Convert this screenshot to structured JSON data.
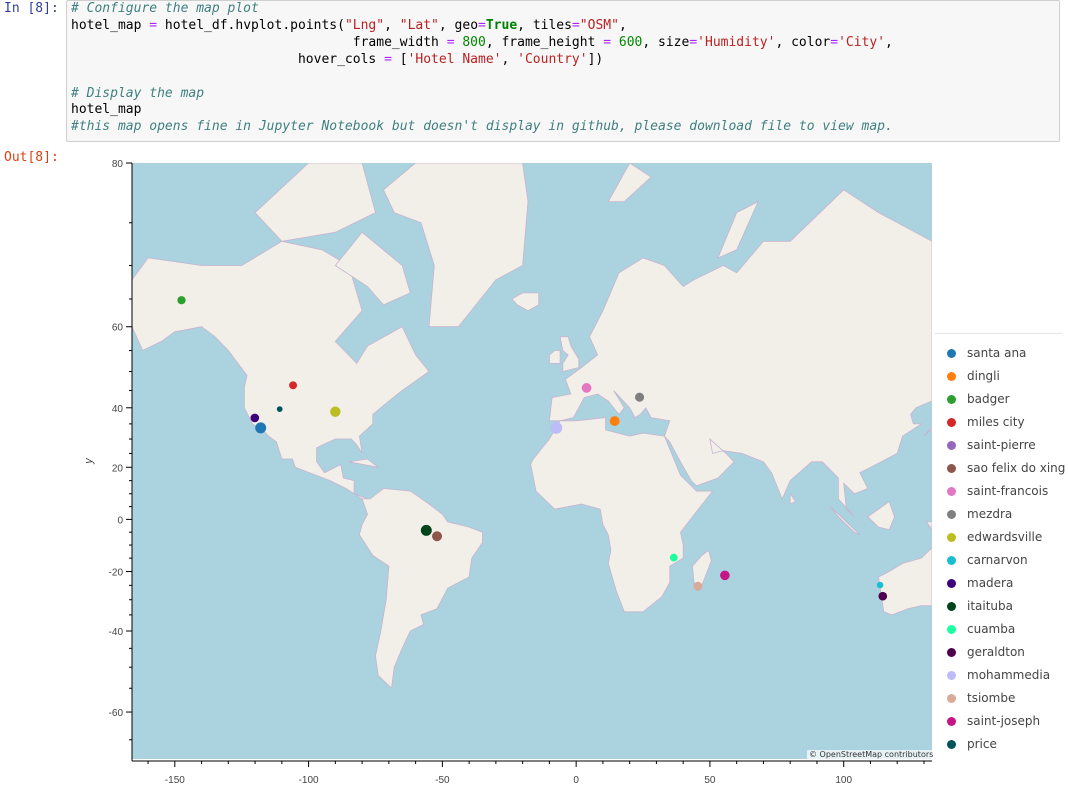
{
  "cell": {
    "in_prompt": "In [8]:",
    "out_prompt": "Out[8]:",
    "code": {
      "l1": "# Configure the map plot",
      "l2a": "hotel_map ",
      "l2b": "=",
      "l2c": " hotel_df.hvplot.points(",
      "l2d": "\"Lng\"",
      "l2e": ", ",
      "l2f": "\"Lat\"",
      "l2g": ", geo",
      "l2h": "=",
      "l2i": "True",
      "l2j": ", tiles",
      "l2k": "=",
      "l2l": "\"OSM\"",
      "l2m": ",",
      "l3a": "                                    frame_width ",
      "l3b": "=",
      "l3c": " ",
      "l3d": "800",
      "l3e": ", frame_height ",
      "l3f": "=",
      "l3g": " ",
      "l3h": "600",
      "l3i": ", size",
      "l3j": "=",
      "l3k": "'Humidity'",
      "l3l": ", color",
      "l3m": "=",
      "l3n": "'City'",
      "l3o": ",",
      "l4a": "                             hover_cols ",
      "l4b": "=",
      "l4c": " [",
      "l4d": "'Hotel Name'",
      "l4e": ", ",
      "l4f": "'Country'",
      "l4g": "])",
      "l6": "# Display the map",
      "l7": "hotel_map",
      "l8": "#this map opens fine in Jupyter Notebook but doesn't display in github, please download file to view map."
    }
  },
  "map": {
    "ylabel": "y",
    "attribution": "© OpenStreetMap contributors",
    "xlim": [
      -166,
      133
    ],
    "ylim": [
      -68,
      80
    ],
    "xticks": [
      -150,
      -100,
      -50,
      0,
      50,
      100
    ],
    "yticks": [
      80,
      60,
      40,
      20,
      0,
      -20,
      -40,
      -60
    ],
    "colors": {
      "ocean": "#aad3df",
      "land": "#f2efe9",
      "border": "#c9b3cf"
    }
  },
  "legend": [
    {
      "label": "santa ana",
      "color": "#1f77b4"
    },
    {
      "label": "dingli",
      "color": "#ff7f0e"
    },
    {
      "label": "badger",
      "color": "#2ca02c"
    },
    {
      "label": "miles city",
      "color": "#d62728"
    },
    {
      "label": "saint-pierre",
      "color": "#9467bd"
    },
    {
      "label": "sao felix do xing",
      "color": "#8c564b"
    },
    {
      "label": "saint-francois",
      "color": "#e377c2"
    },
    {
      "label": "mezdra",
      "color": "#7f7f7f"
    },
    {
      "label": "edwardsville",
      "color": "#bcbd22"
    },
    {
      "label": "carnarvon",
      "color": "#17becf"
    },
    {
      "label": "madera",
      "color": "#3f007d"
    },
    {
      "label": "itaituba",
      "color": "#00441b"
    },
    {
      "label": "cuamba",
      "color": "#1effa0"
    },
    {
      "label": "geraldton",
      "color": "#4d004b"
    },
    {
      "label": "mohammedia",
      "color": "#bcbdf7"
    },
    {
      "label": "tsiombe",
      "color": "#d9a99a"
    },
    {
      "label": "saint-joseph",
      "color": "#c71585"
    },
    {
      "label": "price",
      "color": "#00555a"
    }
  ],
  "chart_data": {
    "type": "scatter",
    "ylabel": "y",
    "xlim": [
      -166,
      133
    ],
    "ylim": [
      -68,
      80
    ],
    "points": [
      {
        "city": "santa ana",
        "lng": -117.9,
        "lat": 33.7,
        "humidity": 58
      },
      {
        "city": "dingli",
        "lng": 14.4,
        "lat": 35.9,
        "humidity": 47
      },
      {
        "city": "badger",
        "lng": -147.5,
        "lat": 64.8,
        "humidity": 33
      },
      {
        "city": "miles city",
        "lng": -105.8,
        "lat": 46.4,
        "humidity": 30
      },
      {
        "city": "saint-pierre",
        "lng": 55.5,
        "lat": -21.3,
        "humidity": 38
      },
      {
        "city": "sao felix do xing",
        "lng": -52.0,
        "lat": -6.6,
        "humidity": 48
      },
      {
        "city": "saint-francois",
        "lng": 3.9,
        "lat": 45.7,
        "humidity": 46
      },
      {
        "city": "mezdra",
        "lng": 23.7,
        "lat": 43.1,
        "humidity": 40
      },
      {
        "city": "edwardsville",
        "lng": -90.0,
        "lat": 38.8,
        "humidity": 52
      },
      {
        "city": "carnarvon",
        "lng": 113.6,
        "lat": -24.9,
        "humidity": 20
      },
      {
        "city": "madera",
        "lng": -120.1,
        "lat": 36.9,
        "humidity": 36
      },
      {
        "city": "itaituba",
        "lng": -56.0,
        "lat": -4.3,
        "humidity": 58
      },
      {
        "city": "cuamba",
        "lng": 36.5,
        "lat": -14.8,
        "humidity": 30
      },
      {
        "city": "geraldton",
        "lng": 114.6,
        "lat": -28.8,
        "humidity": 36
      },
      {
        "city": "mohammedia",
        "lng": -7.4,
        "lat": 33.7,
        "humidity": 68
      },
      {
        "city": "tsiombe",
        "lng": 45.5,
        "lat": -25.3,
        "humidity": 38
      },
      {
        "city": "saint-joseph",
        "lng": 55.6,
        "lat": -21.4,
        "humidity": 44
      },
      {
        "city": "price",
        "lng": -110.8,
        "lat": 39.6,
        "humidity": 16
      }
    ]
  }
}
